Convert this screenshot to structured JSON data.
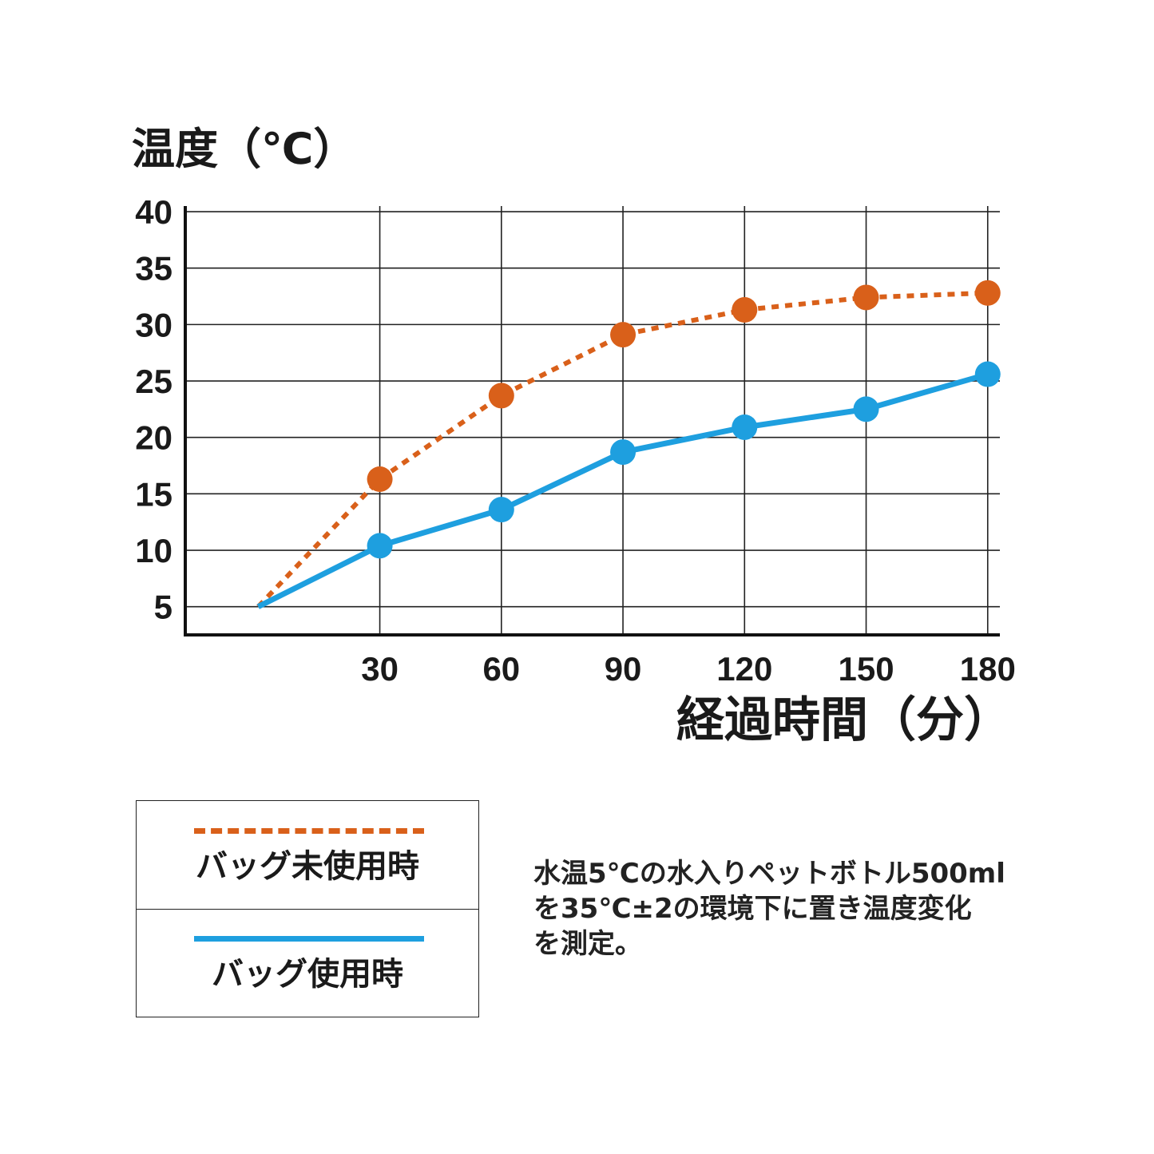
{
  "chart_data": {
    "type": "line",
    "ylabel": "温度（℃）",
    "xlabel": "経過時間（分）",
    "x": [
      0,
      30,
      60,
      90,
      120,
      150,
      180
    ],
    "xticks": [
      30,
      60,
      90,
      120,
      150,
      180
    ],
    "yticks": [
      5,
      10,
      15,
      20,
      25,
      30,
      35,
      40
    ],
    "xlim": [
      -18,
      183
    ],
    "ylim": [
      2.5,
      40.5
    ],
    "grid": true,
    "series": [
      {
        "name": "バッグ未使用時",
        "style": "dotted",
        "color": "#d9601a",
        "values": [
          5.0,
          16.3,
          23.7,
          29.1,
          31.3,
          32.4,
          32.8
        ]
      },
      {
        "name": "バッグ使用時",
        "style": "solid",
        "color": "#1e9fdf",
        "values": [
          5.0,
          10.4,
          13.6,
          18.7,
          20.9,
          22.5,
          25.6
        ]
      }
    ]
  },
  "legend": {
    "unused_label": "バッグ未使用時",
    "used_label": "バッグ使用時"
  },
  "note": {
    "line1": "水温5℃の水入りペットボトル500ml",
    "line2": "を35℃±2の環境下に置き温度変化",
    "line3": "を測定。"
  }
}
